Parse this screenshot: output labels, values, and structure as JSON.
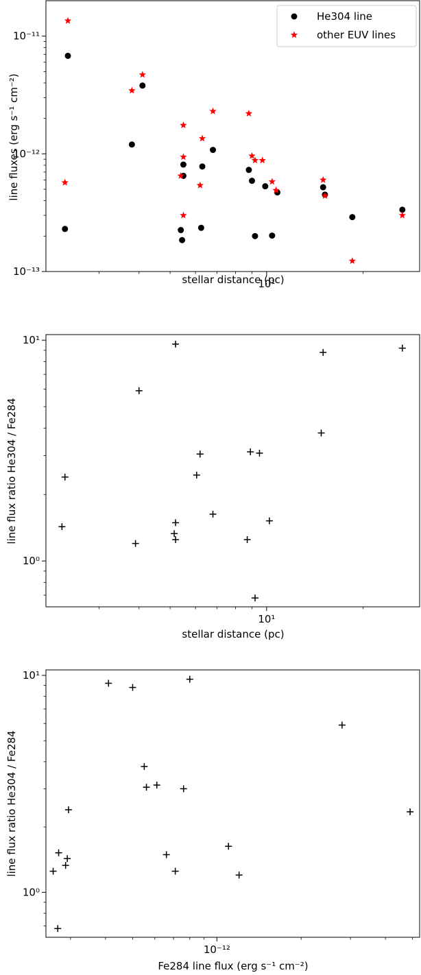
{
  "chart_data": [
    {
      "type": "scatter",
      "xlabel": "stellar distance (pc)",
      "ylabel": "line fluxes (erg s⁻¹ cm⁻²)",
      "xscale": "log",
      "yscale": "log",
      "xlim": [
        2.05,
        30
      ],
      "ylim": [
        1e-13,
        2e-11
      ],
      "xticks": [
        {
          "value": 10,
          "label": "10¹"
        }
      ],
      "yticks": [
        {
          "value": 1e-13,
          "label": "10⁻¹³"
        },
        {
          "value": 1e-12,
          "label": "10⁻¹²"
        },
        {
          "value": 1e-11,
          "label": "10⁻¹¹"
        }
      ],
      "legend": {
        "position": "top-right"
      },
      "series": [
        {
          "name": "He304 line",
          "marker": "circle",
          "color": "#000000",
          "points": [
            [
              2.4,
              6.8e-12
            ],
            [
              2.35,
              2.3e-13
            ],
            [
              4.1,
              3.8e-12
            ],
            [
              3.8,
              1.2e-12
            ],
            [
              5.5,
              8.1e-13
            ],
            [
              5.5,
              6.5e-13
            ],
            [
              5.4,
              2.25e-13
            ],
            [
              5.45,
              1.85e-13
            ],
            [
              6.3,
              7.8e-13
            ],
            [
              6.25,
              2.35e-13
            ],
            [
              6.8,
              1.08e-12
            ],
            [
              8.8,
              7.3e-13
            ],
            [
              9.0,
              5.9e-13
            ],
            [
              9.2,
              2e-13
            ],
            [
              9.9,
              5.3e-13
            ],
            [
              10.4,
              2.02e-13
            ],
            [
              10.8,
              4.7e-13
            ],
            [
              15.0,
              5.2e-13
            ],
            [
              15.2,
              4.5e-13
            ],
            [
              18.5,
              2.9e-13
            ],
            [
              26.5,
              3.35e-13
            ]
          ]
        },
        {
          "name": "other EUV lines",
          "marker": "star",
          "color": "#ff0000",
          "points": [
            [
              2.4,
              1.35e-11
            ],
            [
              2.35,
              5.7e-13
            ],
            [
              4.1,
              4.7e-12
            ],
            [
              3.8,
              3.45e-12
            ],
            [
              5.5,
              1.75e-12
            ],
            [
              5.5,
              9.4e-13
            ],
            [
              5.4,
              6.5e-13
            ],
            [
              5.5,
              3e-13
            ],
            [
              6.3,
              1.35e-12
            ],
            [
              6.2,
              5.4e-13
            ],
            [
              6.8,
              2.3e-12
            ],
            [
              8.8,
              2.2e-12
            ],
            [
              9.0,
              9.6e-13
            ],
            [
              9.2,
              8.8e-13
            ],
            [
              9.7,
              8.8e-13
            ],
            [
              10.4,
              5.8e-13
            ],
            [
              10.7,
              4.9e-13
            ],
            [
              15.0,
              6e-13
            ],
            [
              15.2,
              4.4e-13
            ],
            [
              18.5,
              1.23e-13
            ],
            [
              26.5,
              3e-13
            ]
          ]
        }
      ]
    },
    {
      "type": "scatter",
      "xlabel": "stellar distance (pc)",
      "ylabel": "line flux ratio He304 / Fe284",
      "xscale": "log",
      "yscale": "log",
      "xlim": [
        2.05,
        30
      ],
      "ylim": [
        0.62,
        10.6
      ],
      "xticks": [
        {
          "value": 10,
          "label": "10¹"
        }
      ],
      "yticks": [
        {
          "value": 1,
          "label": "10⁰"
        },
        {
          "value": 10,
          "label": "10¹"
        }
      ],
      "series": [
        {
          "marker": "plus",
          "color": "#000000",
          "points": [
            [
              2.35,
              2.4
            ],
            [
              2.3,
              1.43
            ],
            [
              3.9,
              1.2
            ],
            [
              4.0,
              5.9
            ],
            [
              5.2,
              9.6
            ],
            [
              5.15,
              1.33
            ],
            [
              5.2,
              1.49
            ],
            [
              5.2,
              1.25
            ],
            [
              6.05,
              2.45
            ],
            [
              6.2,
              3.05
            ],
            [
              6.8,
              1.63
            ],
            [
              8.7,
              1.25
            ],
            [
              8.9,
              3.12
            ],
            [
              9.2,
              0.68
            ],
            [
              9.5,
              3.08
            ],
            [
              10.2,
              1.52
            ],
            [
              14.8,
              3.8
            ],
            [
              15.0,
              8.8
            ],
            [
              26.5,
              9.2
            ]
          ]
        }
      ]
    },
    {
      "type": "scatter",
      "xlabel": "Fe284 line flux (erg s⁻¹ cm⁻²)",
      "ylabel": "line flux ratio He304 / Fe284",
      "xscale": "log",
      "yscale": "log",
      "xlim": [
        2.45e-13,
        5.3e-12
      ],
      "ylim": [
        0.62,
        10.6
      ],
      "xticks": [
        {
          "value": 1e-12,
          "label": "10⁻¹²"
        }
      ],
      "yticks": [
        {
          "value": 1,
          "label": "10⁰"
        },
        {
          "value": 10,
          "label": "10¹"
        }
      ],
      "series": [
        {
          "marker": "plus",
          "color": "#000000",
          "points": [
            [
              2.6e-13,
              1.25
            ],
            [
              2.72e-13,
              1.52
            ],
            [
              2.7e-13,
              0.68
            ],
            [
              2.88e-13,
              1.33
            ],
            [
              2.92e-13,
              1.43
            ],
            [
              2.95e-13,
              2.4
            ],
            [
              4.1e-13,
              9.2
            ],
            [
              5e-13,
              8.8
            ],
            [
              5.5e-13,
              3.8
            ],
            [
              5.6e-13,
              3.05
            ],
            [
              6.1e-13,
              3.12
            ],
            [
              6.6e-13,
              1.49
            ],
            [
              7.1e-13,
              1.25
            ],
            [
              7.6e-13,
              3.0
            ],
            [
              8e-13,
              9.6
            ],
            [
              1.1e-12,
              1.63
            ],
            [
              1.2e-12,
              1.2
            ],
            [
              2.8e-12,
              5.9
            ],
            [
              4.9e-12,
              2.35
            ]
          ]
        }
      ]
    }
  ]
}
